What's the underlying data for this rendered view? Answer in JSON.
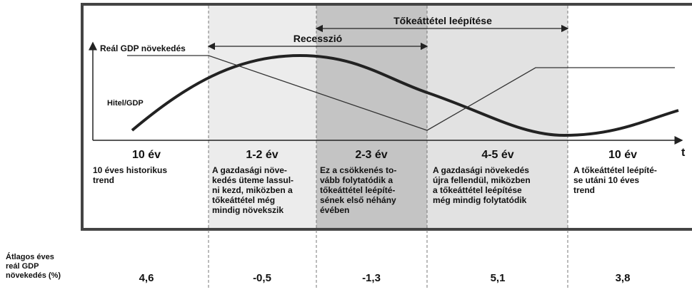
{
  "labels": {
    "gdp": "Reál GDP növekedés",
    "credit": "Hitel/GDP",
    "recession": "Recesszió",
    "deleveraging": "Tőkeáttétel leépítése",
    "time": "t",
    "growth_caption": [
      "Átlagos éves",
      "reál GDP",
      "növekedés (%)"
    ]
  },
  "phases": [
    {
      "duration": "10 év",
      "description": [
        "10 éves historikus",
        "trend"
      ],
      "growth": "4,6"
    },
    {
      "duration": "1-2 év",
      "description": [
        "A gazdasági növe-",
        "kedés üteme lassul-",
        "ni kezd, miközben a",
        "tőkeáttétel még",
        "mindig növekszik"
      ],
      "growth": "-0,5"
    },
    {
      "duration": "2-3 év",
      "description": [
        "Ez a csökkenés to-",
        "vább folytatódik a",
        "tőkeáttétel leépíté-",
        "sének első néhány",
        "évében"
      ],
      "growth": "-1,3"
    },
    {
      "duration": "4-5 év",
      "description": [
        "A gazdasági növekedés",
        "újra fellendül, miközben",
        "a tőkeáttétel leépítése",
        "még mindig folytatódik"
      ],
      "growth": "5,1"
    },
    {
      "duration": "10 év",
      "description": [
        "A tőkeáttétel leépíté-",
        "se utáni 10 éves",
        "trend"
      ],
      "growth": "3,8"
    }
  ]
}
